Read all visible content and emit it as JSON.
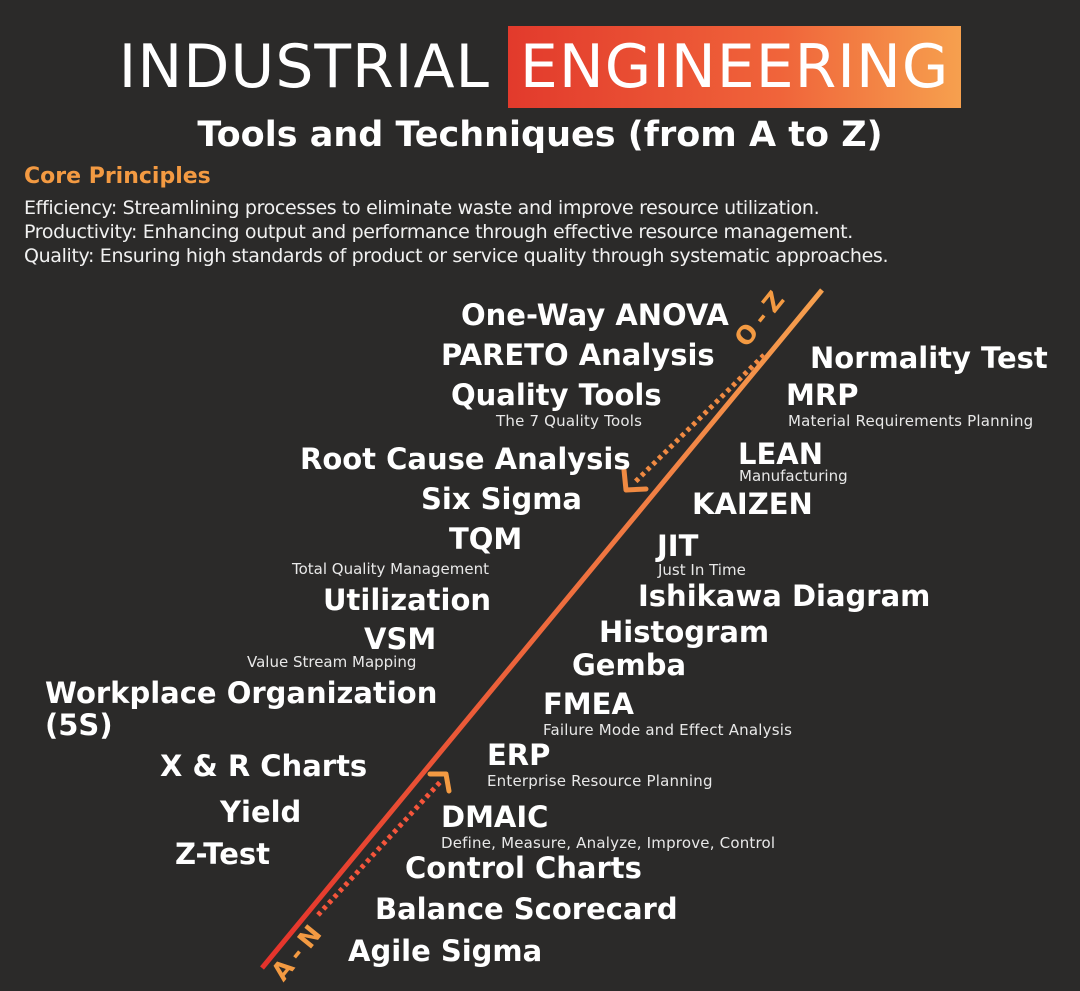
{
  "header": {
    "title_plain": "INDUSTRIAL",
    "title_highlight": "ENGINEERING",
    "subtitle": "Tools and Techniques (from A to Z)"
  },
  "core": {
    "label": "Core Principles",
    "principles": [
      "Efficiency: Streamlining processes to eliminate waste and improve resource utilization.",
      "Productivity: Enhancing output and performance through effective resource management.",
      "Quality: Ensuring high standards of product or service quality through systematic approaches."
    ]
  },
  "diagonal": {
    "top_label": "O-Z",
    "bottom_label": "A-N"
  },
  "tools_left": [
    {
      "name": "One-Way ANOVA"
    },
    {
      "name": "PARETO Analysis"
    },
    {
      "name": "Quality Tools",
      "sub": "The 7 Quality Tools"
    },
    {
      "name": "Root Cause Analysis"
    },
    {
      "name": "Six Sigma"
    },
    {
      "name": "TQM",
      "sub": "Total Quality Management"
    },
    {
      "name": "Utilization"
    },
    {
      "name": "VSM",
      "sub": "Value Stream Mapping"
    },
    {
      "name": "Workplace Organization",
      "name2": "(5S)"
    },
    {
      "name": "X & R Charts"
    },
    {
      "name": "Yield"
    },
    {
      "name": "Z-Test"
    }
  ],
  "tools_right": [
    {
      "name": "Normality Test"
    },
    {
      "name": "MRP",
      "sub": "Material Requirements Planning"
    },
    {
      "name": "LEAN",
      "sub": "Manufacturing"
    },
    {
      "name": "KAIZEN"
    },
    {
      "name": "JIT",
      "sub": "Just In Time"
    },
    {
      "name": "Ishikawa Diagram"
    },
    {
      "name": "Histogram"
    },
    {
      "name": "Gemba"
    },
    {
      "name": "FMEA",
      "sub": "Failure Mode and Effect Analysis"
    },
    {
      "name": "ERP",
      "sub": "Enterprise Resource Planning"
    },
    {
      "name": "DMAIC",
      "sub": "Define, Measure, Analyze, Improve, Control"
    },
    {
      "name": "Control Charts"
    },
    {
      "name": "Balance Scorecard"
    },
    {
      "name": "Agile Sigma"
    }
  ],
  "colors": {
    "background": "#2b2a29",
    "accent_orange": "#f39a42",
    "accent_red": "#e23a2c"
  }
}
